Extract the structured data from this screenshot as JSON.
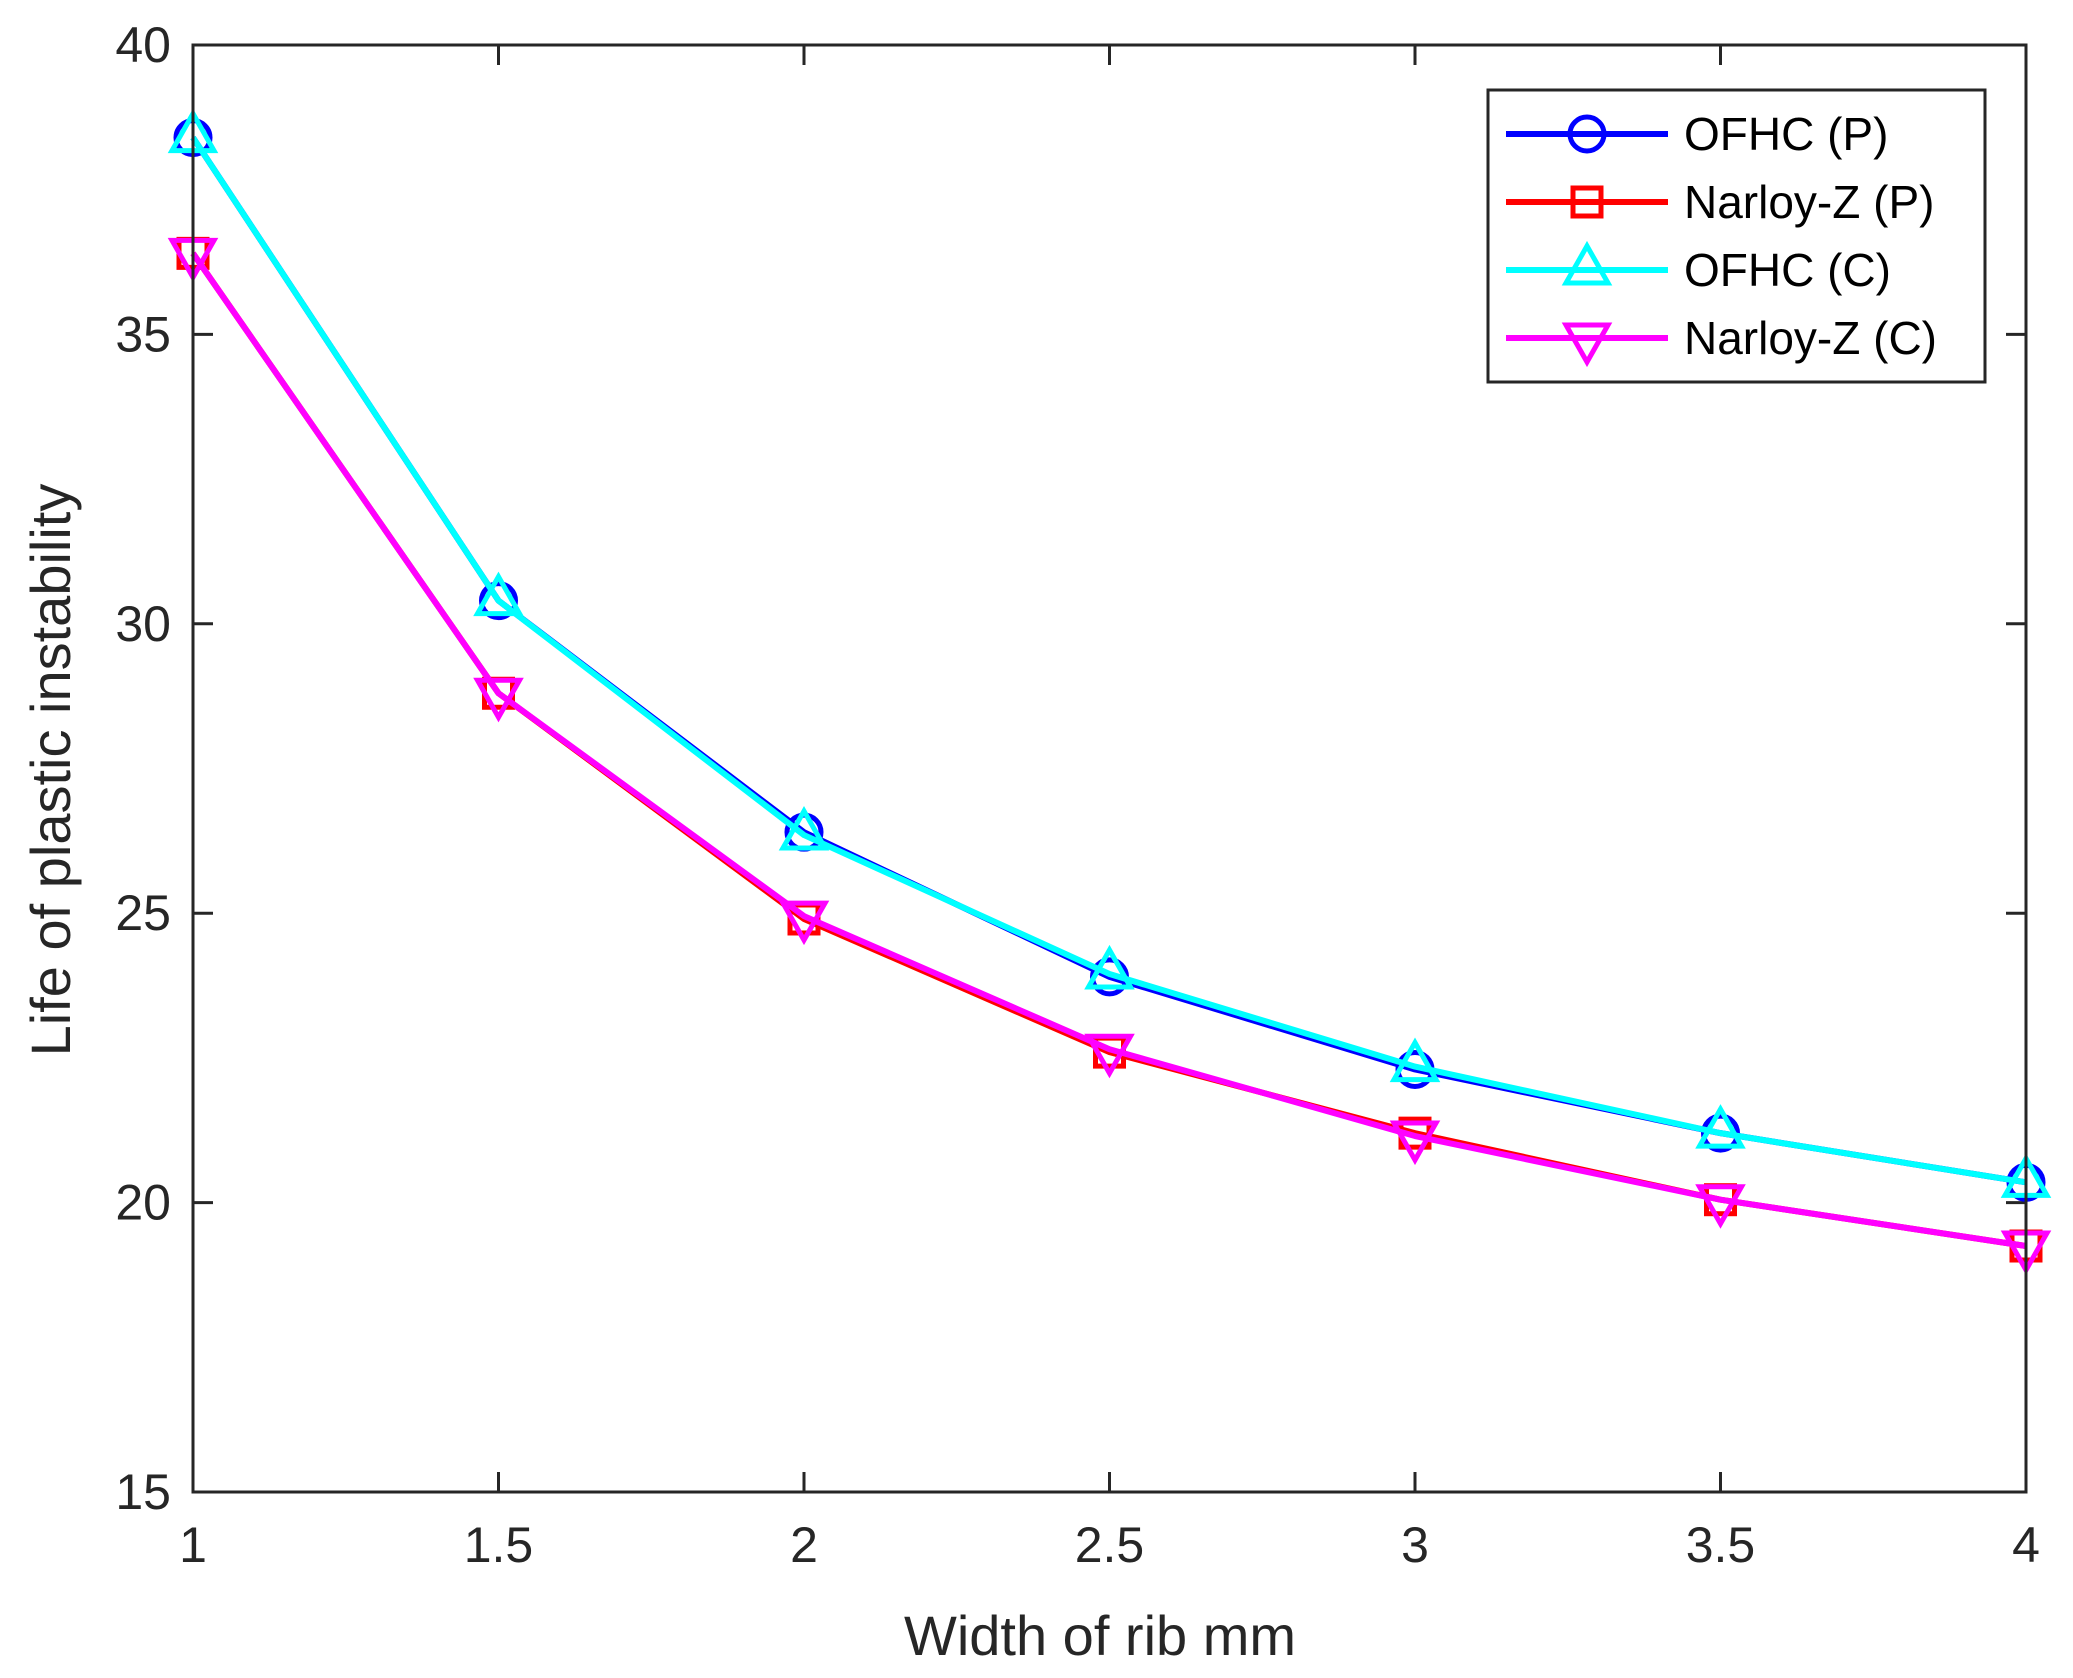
{
  "chart_data": {
    "type": "line",
    "xlabel": "Width of rib mm",
    "ylabel": "Life of plastic instability",
    "xlim": [
      1,
      4
    ],
    "ylim": [
      15,
      40
    ],
    "xticks": [
      1,
      1.5,
      2,
      2.5,
      3,
      3.5,
      4
    ],
    "xtick_labels": [
      "1",
      "1.5",
      "2",
      "2.5",
      "3",
      "3.5",
      "4"
    ],
    "yticks": [
      15,
      20,
      25,
      30,
      35,
      40
    ],
    "ytick_labels": [
      "15",
      "20",
      "25",
      "30",
      "35",
      "40"
    ],
    "grid": false,
    "legend_position": "top-right",
    "x": [
      1,
      1.5,
      2,
      2.5,
      3,
      3.5,
      4
    ],
    "series": [
      {
        "name": "OFHC (P)",
        "color": "#0000ff",
        "marker": "circle",
        "values": [
          38.4,
          30.4,
          26.4,
          23.9,
          22.3,
          21.2,
          20.35
        ]
      },
      {
        "name": "Narloy-Z (P)",
        "color": "#ff0000",
        "marker": "square",
        "values": [
          36.4,
          28.8,
          24.9,
          22.6,
          21.2,
          20.05,
          19.25
        ]
      },
      {
        "name": "OFHC (C)",
        "color": "#00ffff",
        "marker": "triangle-up",
        "values": [
          38.4,
          30.4,
          26.35,
          23.95,
          22.35,
          21.2,
          20.35
        ]
      },
      {
        "name": "Narloy-Z (C)",
        "color": "#ff00ff",
        "marker": "triangle-down",
        "values": [
          36.4,
          28.8,
          24.95,
          22.65,
          21.15,
          20.05,
          19.25
        ]
      }
    ]
  }
}
